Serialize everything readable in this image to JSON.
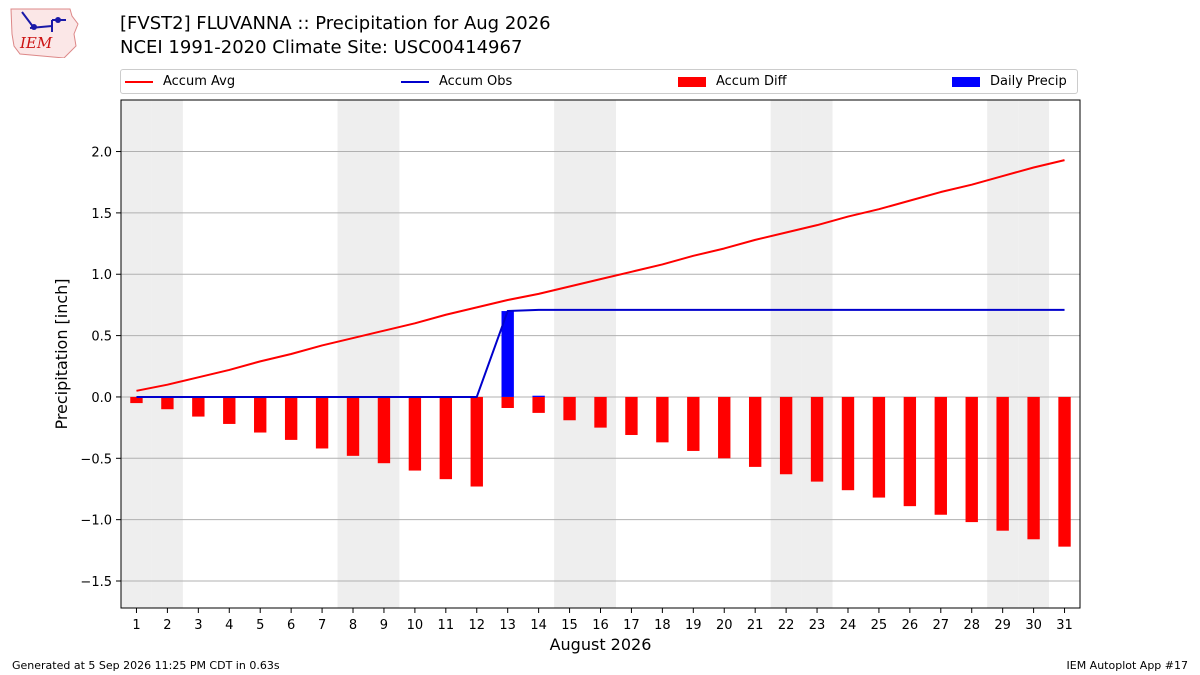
{
  "logo_text": "IEM",
  "title_line1": "[FVST2] FLUVANNA :: Precipitation for Aug 2026",
  "title_line2": "NCEI 1991-2020 Climate Site: USC00414967",
  "footer_left": "Generated at 5 Sep 2026 11:25 PM CDT in 0.63s",
  "footer_right": "IEM Autoplot App #17",
  "colors": {
    "accum_avg": "#ff0000",
    "accum_obs": "#0000cc",
    "accum_diff": "#ff0000",
    "daily_precip": "#0000ff",
    "weekend_shade": "#eeeeee",
    "grid": "#b0b0b0"
  },
  "chart_data": {
    "type": "bar",
    "xlabel": "August 2026",
    "ylabel": "Precipitation [inch]",
    "xlim": [
      0.5,
      31.5
    ],
    "ylim": [
      -1.72,
      2.42
    ],
    "yticks": [
      -1.5,
      -1.0,
      -0.5,
      0.0,
      0.5,
      1.0,
      1.5,
      2.0
    ],
    "ytick_labels": [
      "−1.5",
      "−1.0",
      "−0.5",
      "0.0",
      "0.5",
      "1.0",
      "1.5",
      "2.0"
    ],
    "grid": true,
    "legend_position": "top, above plot",
    "x": [
      1,
      2,
      3,
      4,
      5,
      6,
      7,
      8,
      9,
      10,
      11,
      12,
      13,
      14,
      15,
      16,
      17,
      18,
      19,
      20,
      21,
      22,
      23,
      24,
      25,
      26,
      27,
      28,
      29,
      30,
      31
    ],
    "weekend_days": [
      1,
      2,
      8,
      9,
      15,
      16,
      22,
      23,
      29,
      30
    ],
    "series": [
      {
        "name": "Accum Avg",
        "type": "line",
        "values": [
          0.05,
          0.1,
          0.16,
          0.22,
          0.29,
          0.35,
          0.42,
          0.48,
          0.54,
          0.6,
          0.67,
          0.73,
          0.79,
          0.84,
          0.9,
          0.96,
          1.02,
          1.08,
          1.15,
          1.21,
          1.28,
          1.34,
          1.4,
          1.47,
          1.53,
          1.6,
          1.67,
          1.73,
          1.8,
          1.87,
          1.93
        ]
      },
      {
        "name": "Accum Obs",
        "type": "line",
        "values": [
          0,
          0,
          0,
          0,
          0,
          0,
          0,
          0,
          0,
          0,
          0,
          0,
          0.7,
          0.71,
          0.71,
          0.71,
          0.71,
          0.71,
          0.71,
          0.71,
          0.71,
          0.71,
          0.71,
          0.71,
          0.71,
          0.71,
          0.71,
          0.71,
          0.71,
          0.71,
          0.71
        ]
      },
      {
        "name": "Accum Diff",
        "type": "bar",
        "values": [
          -0.05,
          -0.1,
          -0.16,
          -0.22,
          -0.29,
          -0.35,
          -0.42,
          -0.48,
          -0.54,
          -0.6,
          -0.67,
          -0.73,
          -0.09,
          -0.13,
          -0.19,
          -0.25,
          -0.31,
          -0.37,
          -0.44,
          -0.5,
          -0.57,
          -0.63,
          -0.69,
          -0.76,
          -0.82,
          -0.89,
          -0.96,
          -1.02,
          -1.09,
          -1.16,
          -1.22
        ]
      },
      {
        "name": "Daily Precip",
        "type": "bar",
        "values": [
          0,
          0,
          0,
          0,
          0,
          0,
          0,
          0,
          0,
          0,
          0,
          0,
          0.7,
          0.01,
          0,
          0,
          0,
          0,
          0,
          0,
          0,
          0,
          0,
          0,
          0,
          0,
          0,
          0,
          0,
          0,
          0
        ]
      }
    ]
  }
}
